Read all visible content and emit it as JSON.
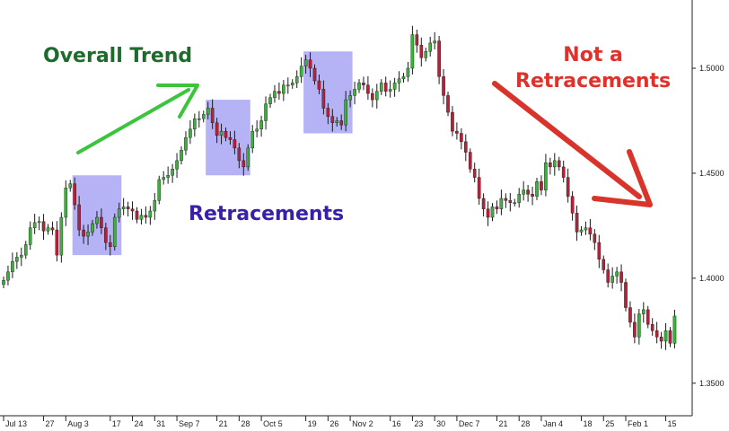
{
  "annotations": {
    "overall_trend": "Overall Trend",
    "retracements": "Retracements",
    "not_a": "Not a",
    "retracements_2": "Retracements"
  },
  "colors": {
    "bull": "#3fae3f",
    "bear": "#b3223a",
    "box": "#a9a4f5",
    "trend_arrow": "#3cc43c",
    "down_arrow": "#d9342b"
  },
  "chart_data": {
    "type": "candlestick",
    "title": "",
    "xlabel": "",
    "ylabel": "",
    "ylim": [
      1.3345,
      1.5325
    ],
    "y_ticks": [
      "1.5000",
      "1.4500",
      "1.4000",
      "1.3500"
    ],
    "y_tick_values": [
      1.5,
      1.45,
      1.4,
      1.35
    ],
    "x_ticks": [
      "Jul 13",
      "27",
      "Aug 3",
      "17",
      "24",
      "31",
      "Sep 7",
      "21",
      "28",
      "Oct 5",
      "19",
      "26",
      "Nov 2",
      "16",
      "23",
      "30",
      "Dec 7",
      "21",
      "28",
      "Jan 4",
      "18",
      "25",
      "Feb 1",
      "15"
    ],
    "x_tick_index": [
      0,
      9,
      14,
      24,
      29,
      34,
      39,
      48,
      53,
      58,
      68,
      73,
      78,
      87,
      92,
      97,
      102,
      111,
      116,
      121,
      130,
      135,
      140,
      149
    ],
    "highlight_ranges": [
      [
        16,
        26
      ],
      [
        46,
        55
      ],
      [
        68,
        78
      ]
    ],
    "close": [
      1.399,
      1.403,
      1.408,
      1.41,
      1.411,
      1.416,
      1.424,
      1.4265,
      1.427,
      1.4225,
      1.424,
      1.423,
      1.411,
      1.429,
      1.443,
      1.445,
      1.435,
      1.423,
      1.42,
      1.422,
      1.426,
      1.429,
      1.424,
      1.417,
      1.415,
      1.429,
      1.433,
      1.434,
      1.433,
      1.432,
      1.428,
      1.43,
      1.429,
      1.432,
      1.437,
      1.447,
      1.448,
      1.449,
      1.452,
      1.456,
      1.461,
      1.467,
      1.471,
      1.476,
      1.476,
      1.478,
      1.481,
      1.474,
      1.468,
      1.47,
      1.467,
      1.466,
      1.462,
      1.456,
      1.453,
      1.462,
      1.47,
      1.471,
      1.475,
      1.483,
      1.486,
      1.489,
      1.488,
      1.492,
      1.492,
      1.493,
      1.496,
      1.501,
      1.504,
      1.5,
      1.494,
      1.49,
      1.481,
      1.477,
      1.474,
      1.475,
      1.473,
      1.485,
      1.487,
      1.49,
      1.493,
      1.492,
      1.488,
      1.485,
      1.489,
      1.493,
      1.489,
      1.49,
      1.493,
      1.495,
      1.496,
      1.5,
      1.516,
      1.511,
      1.505,
      1.508,
      1.512,
      1.513,
      1.496,
      1.487,
      1.479,
      1.47,
      1.469,
      1.465,
      1.46,
      1.452,
      1.448,
      1.438,
      1.433,
      1.429,
      1.434,
      1.433,
      1.438,
      1.437,
      1.436,
      1.436,
      1.44,
      1.442,
      1.44,
      1.439,
      1.446,
      1.442,
      1.455,
      1.453,
      1.456,
      1.453,
      1.448,
      1.439,
      1.431,
      1.422,
      1.423,
      1.424,
      1.421,
      1.417,
      1.409,
      1.404,
      1.398,
      1.401,
      1.403,
      1.398,
      1.386,
      1.379,
      1.372,
      1.383,
      1.385,
      1.378,
      1.375,
      1.372,
      1.37,
      1.375,
      1.369,
      1.382
    ]
  }
}
